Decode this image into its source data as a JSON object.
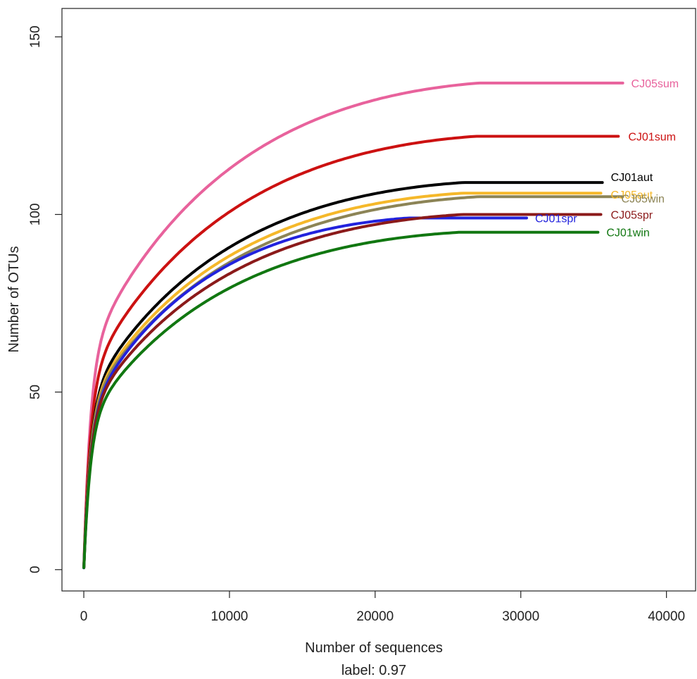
{
  "chart_data": {
    "type": "line",
    "title": "",
    "xlabel": "Number of sequences",
    "ylabel": "Number of OTUs",
    "caption": "label: 0.97",
    "xlim": [
      -1500,
      42000
    ],
    "ylim": [
      -6,
      158
    ],
    "x_ticks": [
      0,
      10000,
      20000,
      30000,
      40000
    ],
    "y_ticks": [
      0,
      50,
      100,
      150
    ],
    "grid": false,
    "legend": "none",
    "series": [
      {
        "name": "CJ05sum",
        "color": "#e8629c",
        "max_x": 37000,
        "final_y": 137
      },
      {
        "name": "CJ01sum",
        "color": "#cc1111",
        "max_x": 36700,
        "final_y": 122
      },
      {
        "name": "CJ01aut",
        "color": "#000000",
        "max_x": 35600,
        "final_y": 109
      },
      {
        "name": "CJ05aut",
        "color": "#f5b82a",
        "max_x": 35500,
        "final_y": 106
      },
      {
        "name": "CJ05win",
        "color": "#8c8456",
        "max_x": 37000,
        "final_y": 105
      },
      {
        "name": "CJ01spr",
        "color": "#2222dd",
        "max_x": 30400,
        "final_y": 99
      },
      {
        "name": "CJ05spr",
        "color": "#8b1a1a",
        "max_x": 35500,
        "final_y": 100
      },
      {
        "name": "CJ01win",
        "color": "#117711",
        "max_x": 35300,
        "final_y": 95
      }
    ]
  }
}
